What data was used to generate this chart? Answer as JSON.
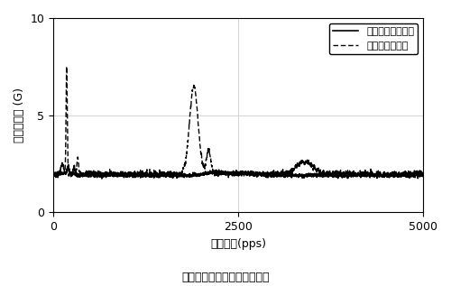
{
  "title": "振动特性比较（细分驱动时）",
  "xlabel": "驱动频率(pps)",
  "ylabel": "振动加速度 (G)",
  "xlim": [
    0,
    5000
  ],
  "ylim": [
    0,
    10
  ],
  "yticks": [
    0,
    5,
    10
  ],
  "xticks": [
    0,
    2500,
    5000
  ],
  "legend_new": "新方式定子齿结构",
  "legend_trad": "传统定子齿结构",
  "grid_color": "#cccccc"
}
